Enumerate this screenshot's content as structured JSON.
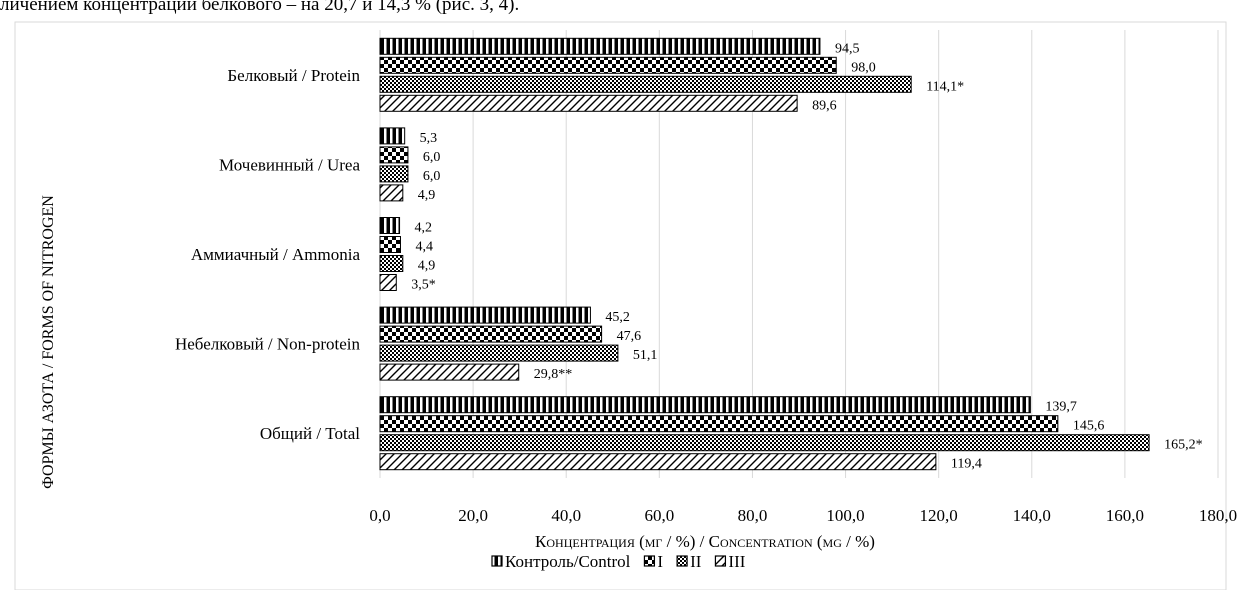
{
  "page": {
    "caption_fragment": "личением концентрации белкового – на 20,7 и 14,3 % (рис. 3, 4)."
  },
  "chart_data": {
    "type": "bar",
    "orientation": "horizontal",
    "categories": [
      "Белковый / Protein",
      "Мочевинный / Urea",
      "Аммиачный / Ammonia",
      "Небелковый / Non-protein",
      "Общий / Total"
    ],
    "series": [
      {
        "name": "Контроль/Control",
        "pattern": "vertical-lines",
        "values": [
          94.5,
          5.3,
          4.2,
          45.2,
          139.7
        ],
        "labels": [
          "94,5",
          "5,3",
          "4,2",
          "45,2",
          "139,7"
        ]
      },
      {
        "name": "I",
        "pattern": "checker",
        "values": [
          98.0,
          6.0,
          4.4,
          47.6,
          145.6
        ],
        "labels": [
          "98,0",
          "6,0",
          "4,4",
          "47,6",
          "145,6"
        ]
      },
      {
        "name": "II",
        "pattern": "dots",
        "values": [
          114.1,
          6.0,
          4.9,
          51.1,
          165.2
        ],
        "labels": [
          "114,1*",
          "6,0",
          "4,9",
          "51,1",
          "165,2*"
        ]
      },
      {
        "name": "III",
        "pattern": "diagonal-lines",
        "values": [
          89.6,
          4.9,
          3.5,
          29.8,
          119.4
        ],
        "labels": [
          "89,6",
          "4,9",
          "3,5*",
          "29,8**",
          "119,4"
        ]
      }
    ],
    "xlim": [
      0,
      180
    ],
    "x_ticks": [
      "0,0",
      "20,0",
      "40,0",
      "60,0",
      "80,0",
      "100,0",
      "120,0",
      "140,0",
      "160,0",
      "180,0"
    ],
    "xlabel": "Концентрация (мг / %) / Concentration (mg / %)",
    "ylabel": "ФОРМЫ АЗОТА / FORMS OF NITROGEN",
    "grid": "vertical",
    "legend_position": "bottom",
    "colors": {
      "bar_fill": "#000000",
      "grid": "#d9d9d9",
      "background": "#ffffff"
    }
  }
}
